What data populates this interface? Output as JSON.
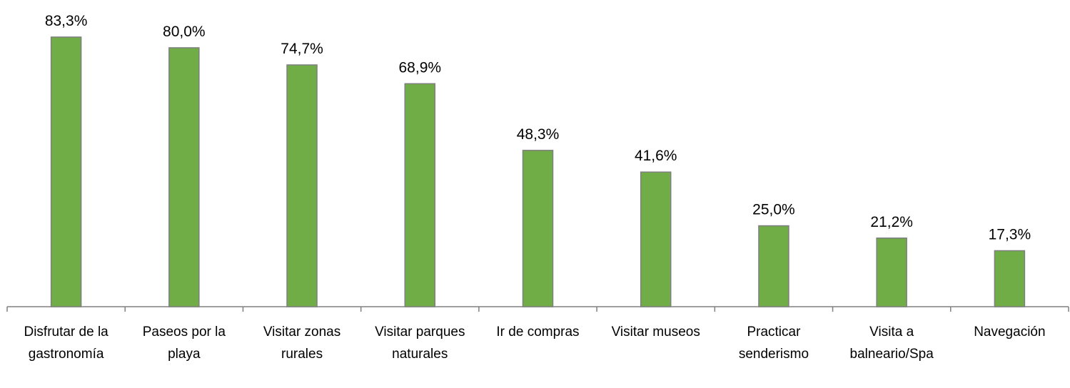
{
  "chart_data": {
    "type": "bar",
    "categories": [
      "Disfrutar de la gastronomía",
      "Paseos por la playa",
      "Visitar zonas rurales",
      "Visitar parques naturales",
      "Ir de compras",
      "Visitar museos",
      "Practicar senderismo",
      "Visita a balneario/Spa",
      "Navegación"
    ],
    "values": [
      83.3,
      80.0,
      74.7,
      68.9,
      48.3,
      41.6,
      25.0,
      21.2,
      17.3
    ],
    "value_labels": [
      "83,3%",
      "80,0%",
      "74,7%",
      "68,9%",
      "48,3%",
      "41,6%",
      "25,0%",
      "21,2%",
      "17,3%"
    ],
    "color": "#70ad47",
    "ylim": [
      0,
      90
    ]
  }
}
